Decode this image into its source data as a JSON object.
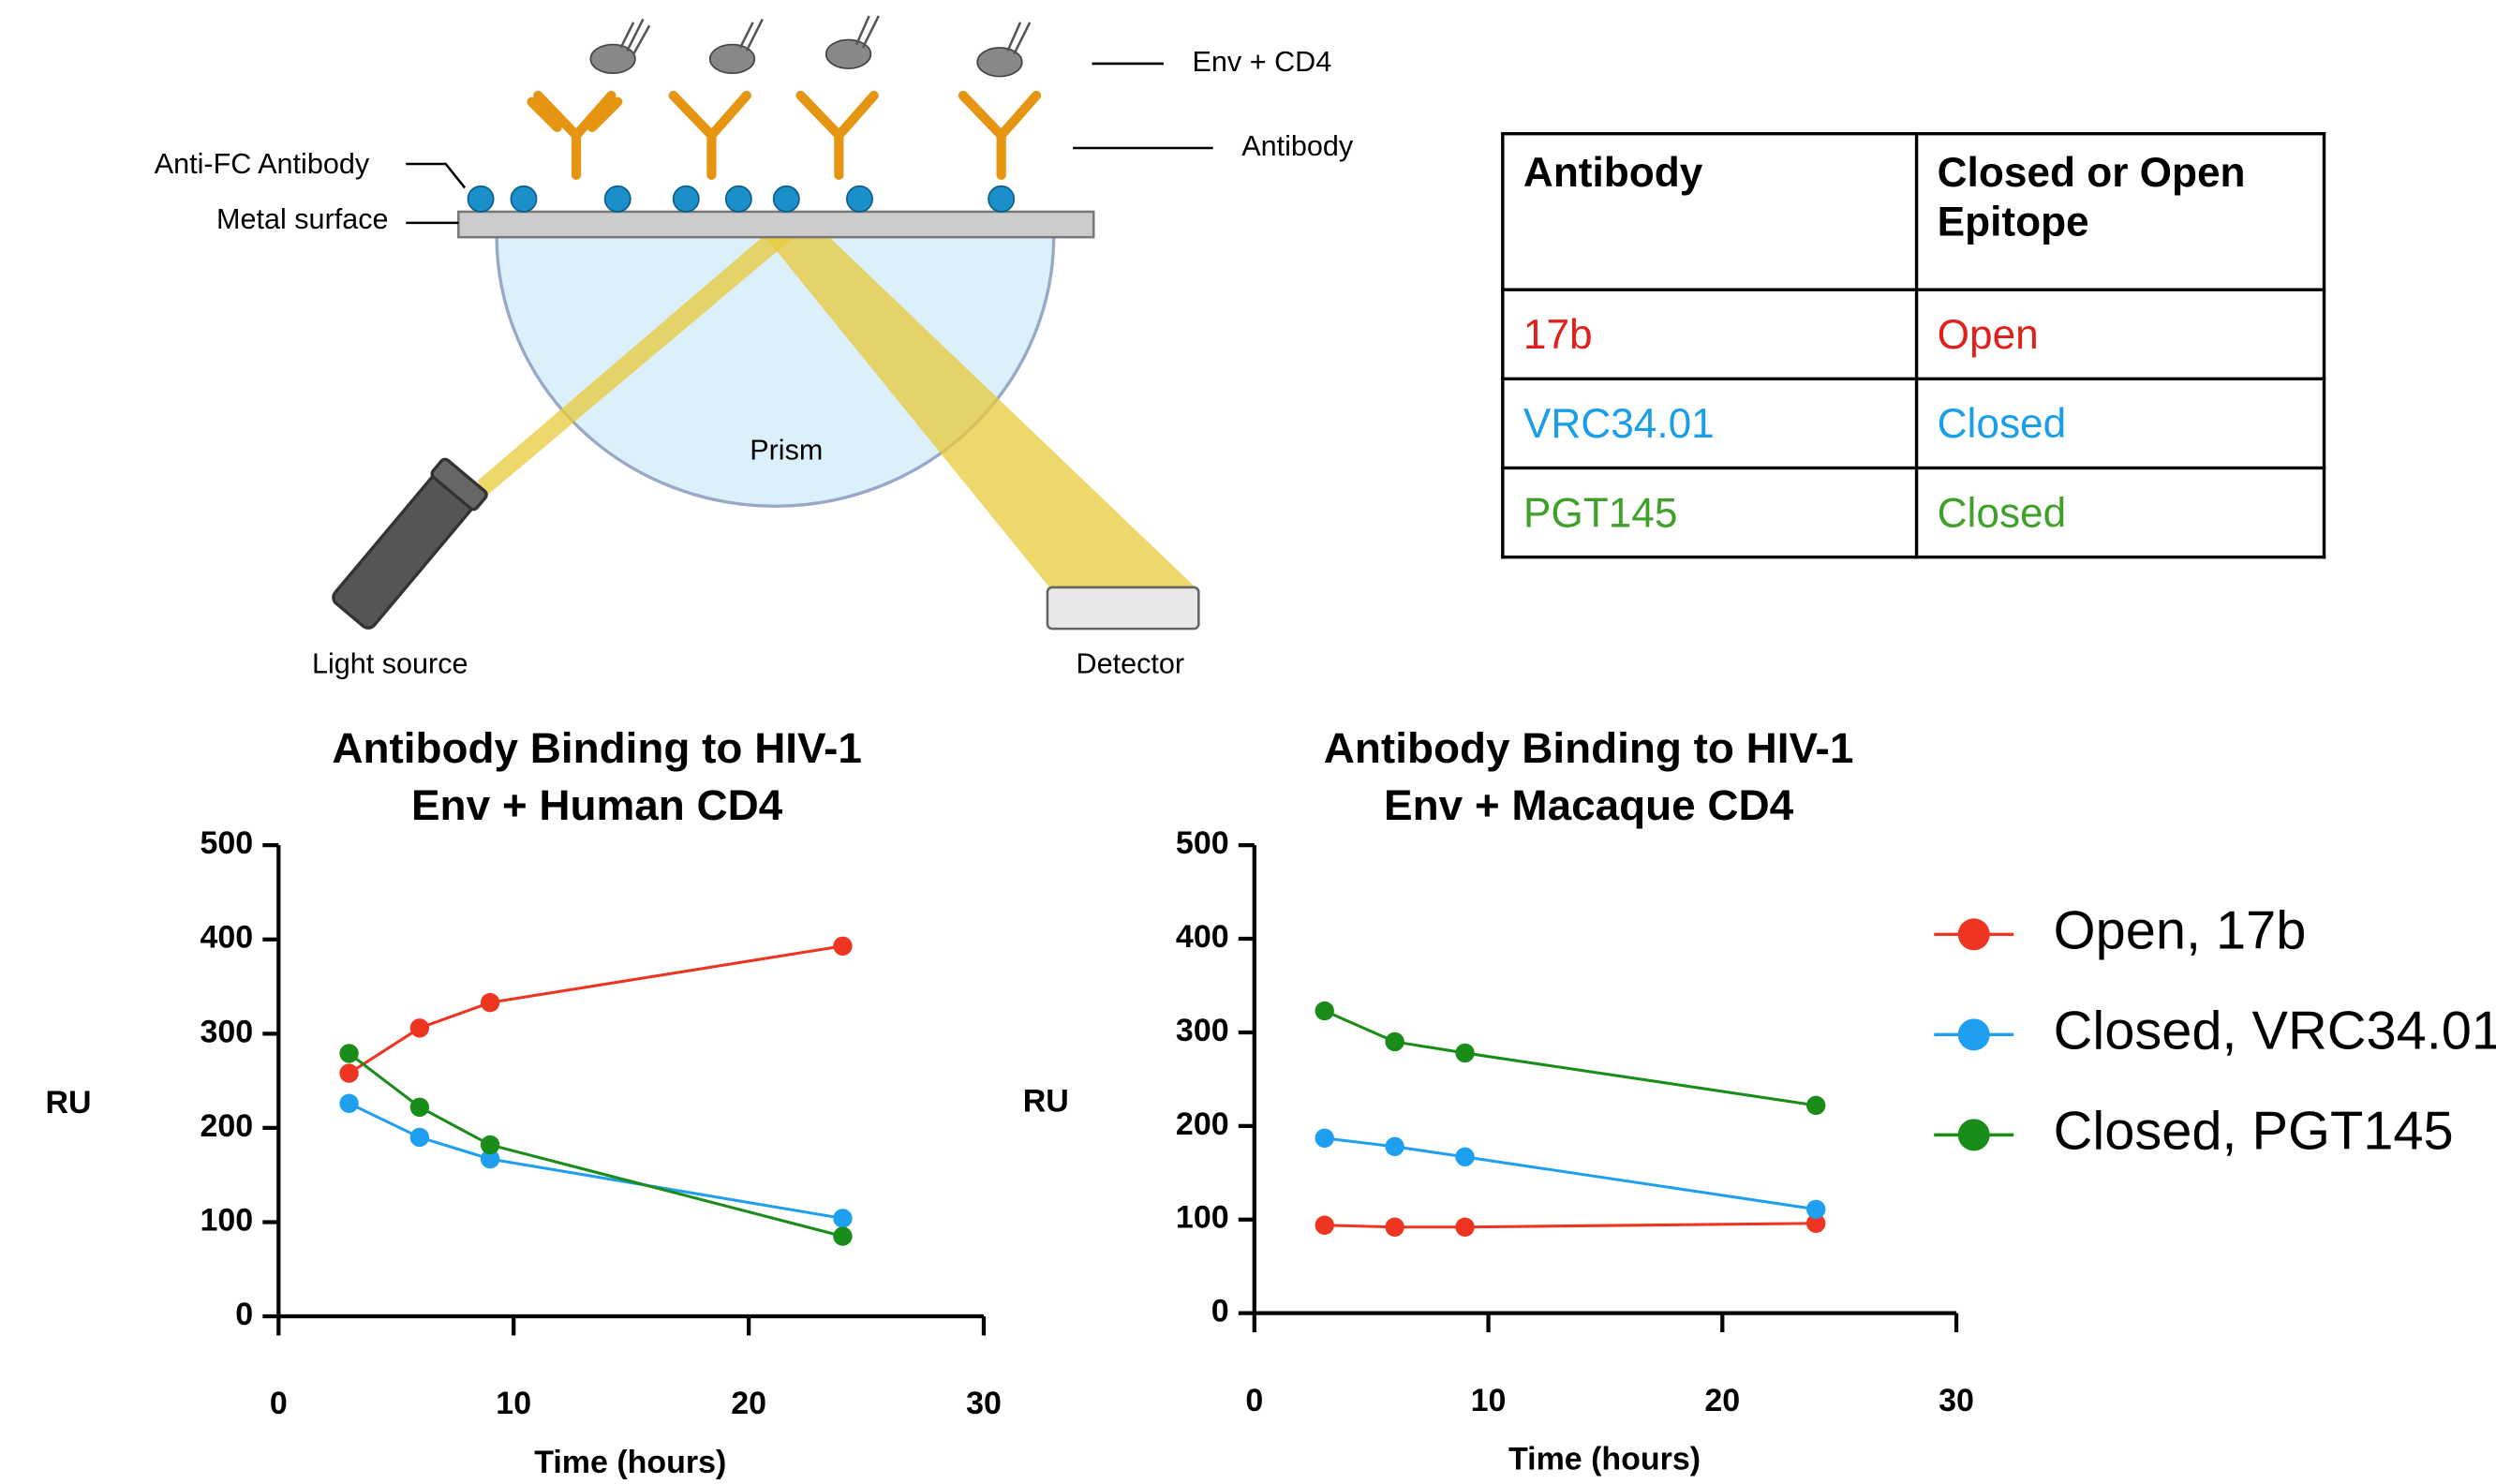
{
  "diagram": {
    "labels": {
      "env_cd4": "Env + CD4",
      "antibody": "Antibody",
      "anti_fc": "Anti-FC Antibody",
      "metal": "Metal surface",
      "prism": "Prism",
      "light": "Light source",
      "detector": "Detector"
    }
  },
  "table": {
    "header": [
      "Antibody",
      "Closed or Open Epitope"
    ],
    "rows": [
      [
        "17b",
        "Open"
      ],
      [
        "VRC34.01",
        "Closed"
      ],
      [
        "PGT145",
        "Closed"
      ]
    ],
    "row_colors": [
      "#e0201a",
      "#1a9ee8",
      "#3fa02a"
    ]
  },
  "chart_data": [
    {
      "type": "line",
      "title": [
        "Antibody Binding to HIV-1",
        "Env + Human CD4"
      ],
      "x_label": "Time (hours)",
      "y_label": "RU",
      "x": [
        3,
        6,
        9,
        24
      ],
      "xlim": [
        0,
        30
      ],
      "xticks": [
        0,
        10,
        20,
        30
      ],
      "ylim": [
        0,
        500
      ],
      "yticks": [
        0,
        100,
        200,
        300,
        400,
        500
      ],
      "series": [
        {
          "color": "#ee3522",
          "values": [
            258,
            306,
            333,
            393
          ]
        },
        {
          "color": "#1e9ff0",
          "values": [
            226,
            190,
            167,
            104
          ]
        },
        {
          "color": "#1a8c1a",
          "values": [
            279,
            222,
            182,
            85
          ]
        }
      ]
    },
    {
      "type": "line",
      "title": [
        "Antibody Binding to HIV-1",
        "Env + Macaque CD4"
      ],
      "x_label": "Time (hours)",
      "y_label": "RU",
      "x": [
        3,
        6,
        9,
        24
      ],
      "xlim": [
        0,
        30
      ],
      "xticks": [
        0,
        10,
        20,
        30
      ],
      "ylim": [
        0,
        500
      ],
      "yticks": [
        0,
        100,
        200,
        300,
        400,
        500
      ],
      "legend": "right",
      "series": [
        {
          "name": "Open, 17b",
          "color": "#ee3522",
          "values": [
            94,
            92,
            92,
            96
          ]
        },
        {
          "name": "Closed, VRC34.01",
          "color": "#1e9ff0",
          "values": [
            187,
            178,
            167,
            111
          ]
        },
        {
          "name": "Closed, PGT145",
          "color": "#1a8c1a",
          "values": [
            323,
            290,
            278,
            222
          ]
        }
      ]
    }
  ]
}
